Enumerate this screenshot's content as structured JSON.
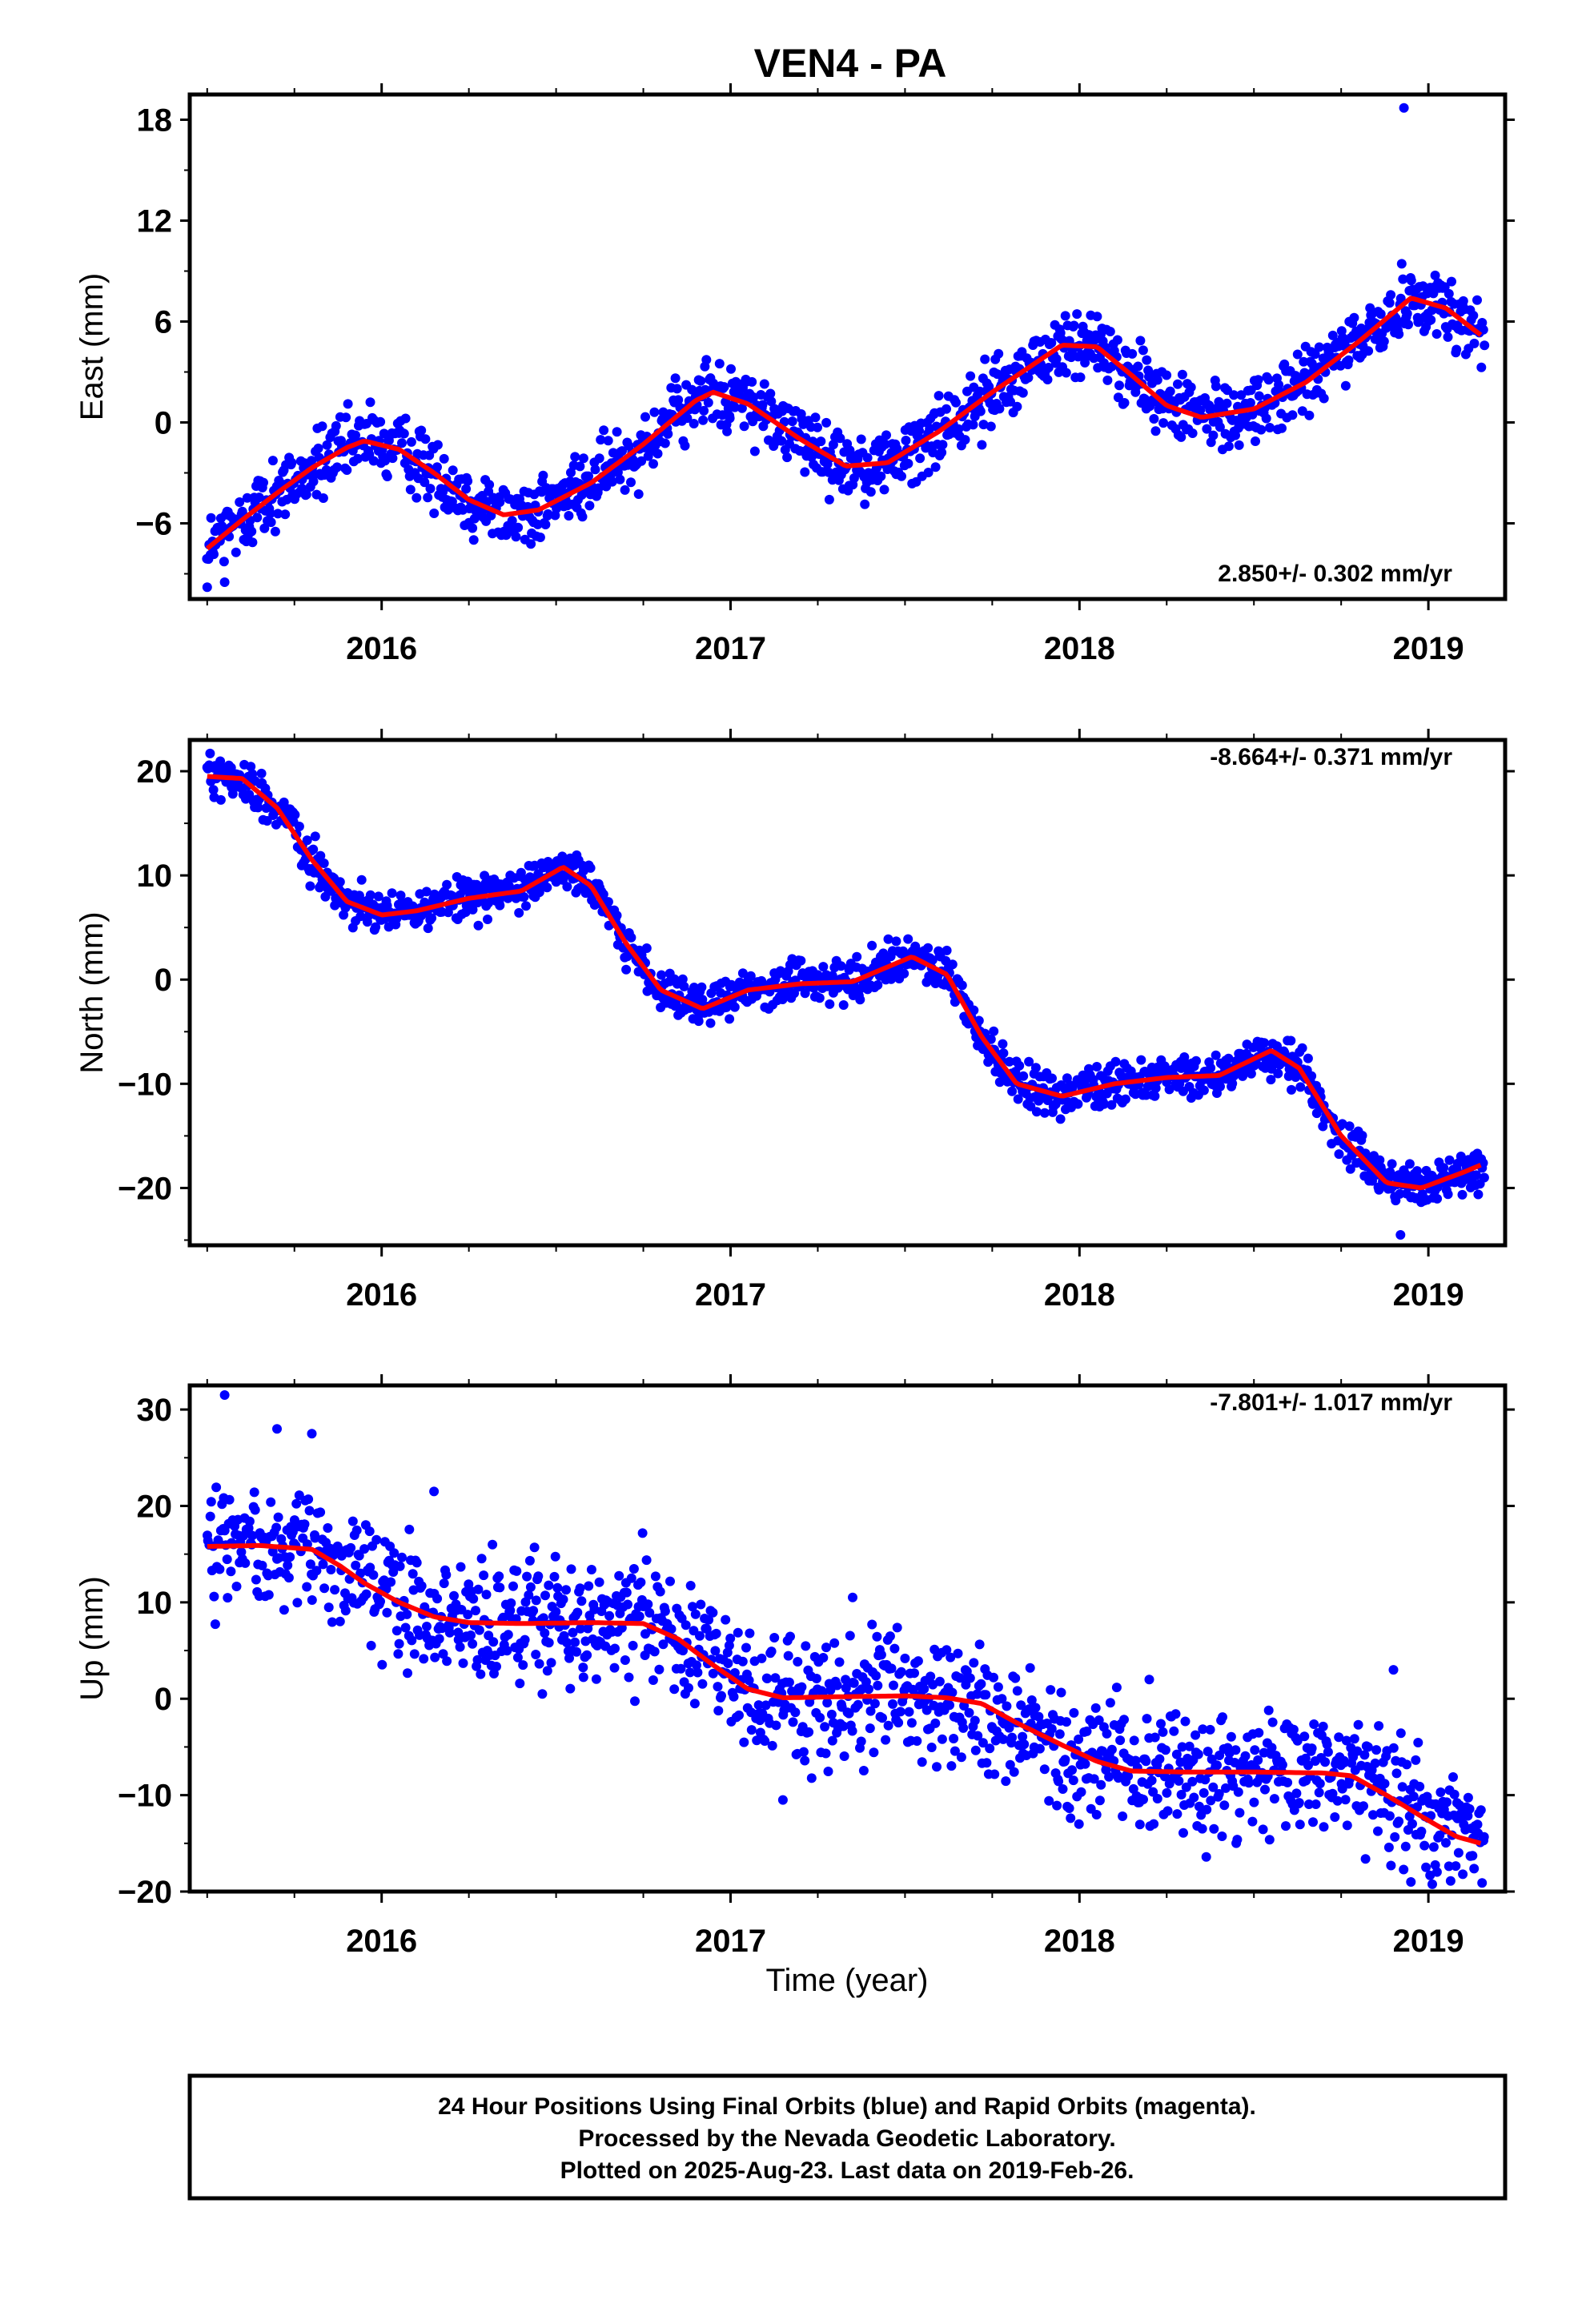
{
  "title": "VEN4 - PA",
  "xlabel": "Time (year)",
  "footer_lines": [
    "24 Hour Positions Using Final Orbits (blue) and Rapid Orbits (magenta).",
    "Processed by the Nevada Geodetic Laboratory.",
    "Plotted on 2025-Aug-23. Last data on 2019-Feb-26."
  ],
  "colors": {
    "final_orbits": "#0000ff",
    "model": "#ff0000",
    "frame": "#000000"
  },
  "chart_data": [
    {
      "type": "scatter",
      "ylabel": "East (mm)",
      "rate": "2.850+/- 0.302 mm/yr",
      "xlim": [
        2015.45,
        2019.22
      ],
      "ylim": [
        -10.5,
        19.5
      ],
      "yticks": [
        -6,
        0,
        6,
        12,
        18
      ],
      "xticks": [
        2016,
        2017,
        2018,
        2019
      ],
      "grid": false,
      "series": [
        {
          "marker": "dot",
          "color": "#0000ff",
          "noise_mm": 1.0,
          "outliers": [
            [
              2018.93,
              18.7
            ],
            [
              2015.5,
              -9.8
            ],
            [
              2015.55,
              -9.5
            ]
          ]
        },
        {
          "marker": "line",
          "color": "#ff0000",
          "x": [
            2015.5,
            2015.6,
            2015.7,
            2015.8,
            2015.9,
            2015.95,
            2016.05,
            2016.15,
            2016.25,
            2016.35,
            2016.45,
            2016.6,
            2016.75,
            2016.9,
            2016.95,
            2017.05,
            2017.2,
            2017.33,
            2017.45,
            2017.6,
            2017.75,
            2017.95,
            2018.05,
            2018.15,
            2018.25,
            2018.35,
            2018.5,
            2018.65,
            2018.8,
            2018.95,
            2019.05,
            2019.15
          ],
          "y": [
            -7.5,
            -5.8,
            -4.2,
            -2.7,
            -1.5,
            -1.1,
            -1.6,
            -3.0,
            -4.6,
            -5.5,
            -5.2,
            -3.6,
            -1.3,
            1.3,
            1.8,
            1.1,
            -1.0,
            -2.6,
            -2.4,
            -0.5,
            1.8,
            4.6,
            4.5,
            2.8,
            1.0,
            0.3,
            0.8,
            2.4,
            4.8,
            7.4,
            6.8,
            5.2
          ]
        }
      ]
    },
    {
      "type": "scatter",
      "ylabel": "North (mm)",
      "rate": "-8.664+/- 0.371 mm/yr",
      "xlim": [
        2015.45,
        2019.22
      ],
      "ylim": [
        -25.5,
        23
      ],
      "yticks": [
        -20,
        -10,
        0,
        10,
        20
      ],
      "xticks": [
        2016,
        2017,
        2018,
        2019
      ],
      "grid": false,
      "series": [
        {
          "marker": "dot",
          "color": "#0000ff",
          "noise_mm": 1.0,
          "outliers": [
            [
              2018.92,
              -24.5
            ],
            [
              2015.52,
              17.5
            ]
          ]
        },
        {
          "marker": "line",
          "color": "#ff0000",
          "x": [
            2015.5,
            2015.6,
            2015.7,
            2015.8,
            2015.9,
            2016.0,
            2016.1,
            2016.25,
            2016.4,
            2016.52,
            2016.6,
            2016.7,
            2016.8,
            2016.92,
            2017.05,
            2017.2,
            2017.35,
            2017.52,
            2017.62,
            2017.72,
            2017.82,
            2017.95,
            2018.1,
            2018.25,
            2018.4,
            2018.55,
            2018.63,
            2018.75,
            2018.88,
            2018.98,
            2019.1,
            2019.15
          ],
          "y": [
            19.5,
            19.3,
            16.5,
            11.5,
            7.5,
            6.2,
            6.6,
            7.8,
            8.5,
            10.8,
            9.0,
            3.5,
            -1.0,
            -2.8,
            -1.0,
            -0.4,
            -0.2,
            2.2,
            0.5,
            -5.5,
            -10.0,
            -11.2,
            -10.0,
            -9.4,
            -9.2,
            -6.8,
            -8.5,
            -15.0,
            -19.5,
            -20.0,
            -18.5,
            -17.8
          ]
        }
      ]
    },
    {
      "type": "scatter",
      "ylabel": "Up (mm)",
      "rate": "-7.801+/- 1.017 mm/yr",
      "xlim": [
        2015.45,
        2019.22
      ],
      "ylim": [
        -20,
        32.5
      ],
      "yticks": [
        -20,
        -10,
        0,
        10,
        20,
        30
      ],
      "xticks": [
        2016,
        2017,
        2018,
        2019
      ],
      "grid": false,
      "series": [
        {
          "marker": "dot",
          "color": "#0000ff",
          "noise_mm": 3.2,
          "outliers": [
            [
              2015.55,
              31.5
            ],
            [
              2015.7,
              28.0
            ],
            [
              2015.8,
              27.5
            ],
            [
              2016.15,
              21.5
            ],
            [
              2017.35,
              10.5
            ],
            [
              2017.15,
              -10.5
            ],
            [
              2018.95,
              -19.0
            ],
            [
              2018.9,
              3.0
            ],
            [
              2018.2,
              2.0
            ]
          ]
        },
        {
          "marker": "line",
          "color": "#ff0000",
          "x": [
            2015.5,
            2015.65,
            2015.8,
            2015.88,
            2015.95,
            2016.05,
            2016.15,
            2016.25,
            2016.4,
            2016.6,
            2016.75,
            2016.85,
            2016.95,
            2017.05,
            2017.15,
            2017.3,
            2017.5,
            2017.62,
            2017.72,
            2017.82,
            2017.95,
            2018.05,
            2018.15,
            2018.3,
            2018.5,
            2018.7,
            2018.78,
            2018.88,
            2018.98,
            2019.08,
            2019.15
          ],
          "y": [
            15.8,
            15.9,
            15.5,
            13.8,
            12.0,
            10.0,
            8.5,
            7.9,
            7.8,
            7.9,
            7.8,
            6.2,
            3.5,
            1.0,
            0.1,
            0.2,
            0.3,
            0.1,
            -0.5,
            -2.5,
            -4.8,
            -6.5,
            -7.5,
            -7.6,
            -7.6,
            -7.7,
            -8.0,
            -10.0,
            -12.2,
            -14.3,
            -15.0
          ]
        }
      ]
    }
  ]
}
